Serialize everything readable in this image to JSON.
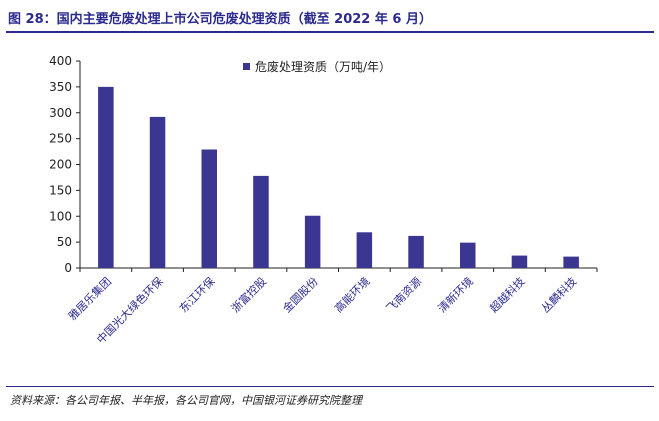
{
  "header": {
    "title": "图 28：国内主要危废处理上市公司危废处理资质（截至 2022 年 6 月）"
  },
  "footer": {
    "source": "资料来源：各公司年报、半年报，各公司官网，中国银河证券研究院整理"
  },
  "colors": {
    "accent": "#2b2a8c",
    "bar": "#3b3691"
  },
  "chart_data": {
    "type": "bar",
    "categories": [
      "雅居乐集团",
      "中国光大绿色环保",
      "东江环保",
      "浙富控股",
      "金圆股份",
      "高能环境",
      "飞南资源",
      "清新环境",
      "超越科技",
      "丛麟科技"
    ],
    "series": [
      {
        "name": "危废处理资质（万吨/年）",
        "values": [
          350,
          292,
          229,
          178,
          101,
          69,
          62,
          49,
          24,
          22
        ]
      }
    ],
    "ylim": [
      0,
      400
    ],
    "yticks": [
      0,
      50,
      100,
      150,
      200,
      250,
      300,
      350,
      400
    ],
    "legend_position": "top-center",
    "grid": false
  }
}
